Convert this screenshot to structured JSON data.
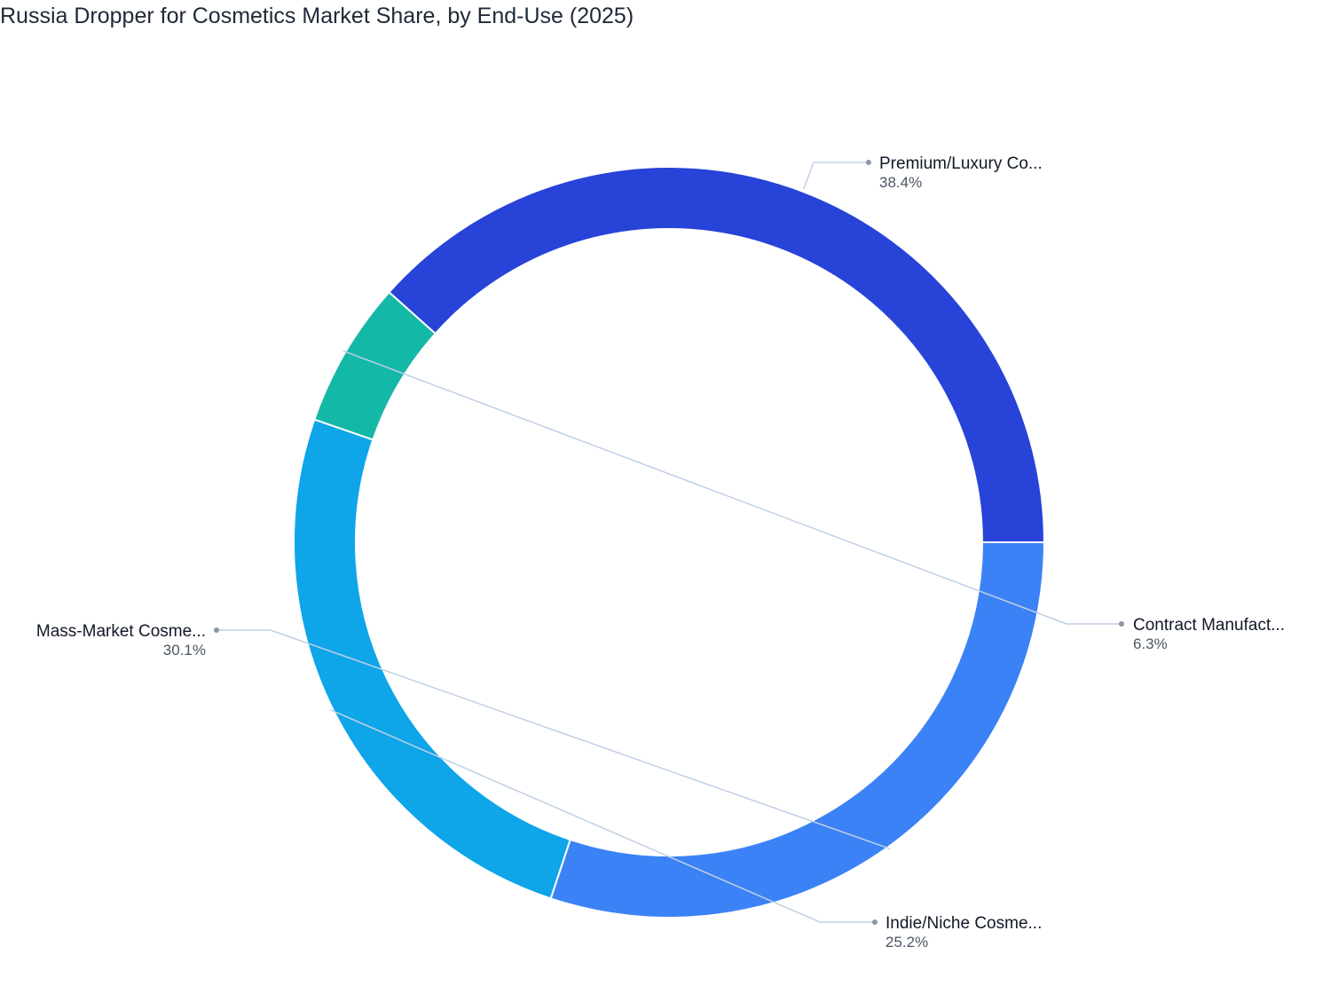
{
  "chart_data": {
    "type": "pie",
    "title": "Russia Dropper for Cosmetics Market Share, by End-Use (2025)",
    "slices": [
      {
        "label": "Premium/Luxury Co...",
        "value": 38.4,
        "value_label": "38.4%",
        "color": "#2743d8"
      },
      {
        "label": "Contract Manufact...",
        "value": 6.3,
        "value_label": "6.3%",
        "color": "#14b8a6"
      },
      {
        "label": "Indie/Niche Cosme...",
        "value": 25.2,
        "value_label": "25.2%",
        "color": "#0ea5e9"
      },
      {
        "label": "Mass-Market Cosme...",
        "value": 30.1,
        "value_label": "30.1%",
        "color": "#3b82f6"
      }
    ],
    "donut": true,
    "legend": "none"
  }
}
